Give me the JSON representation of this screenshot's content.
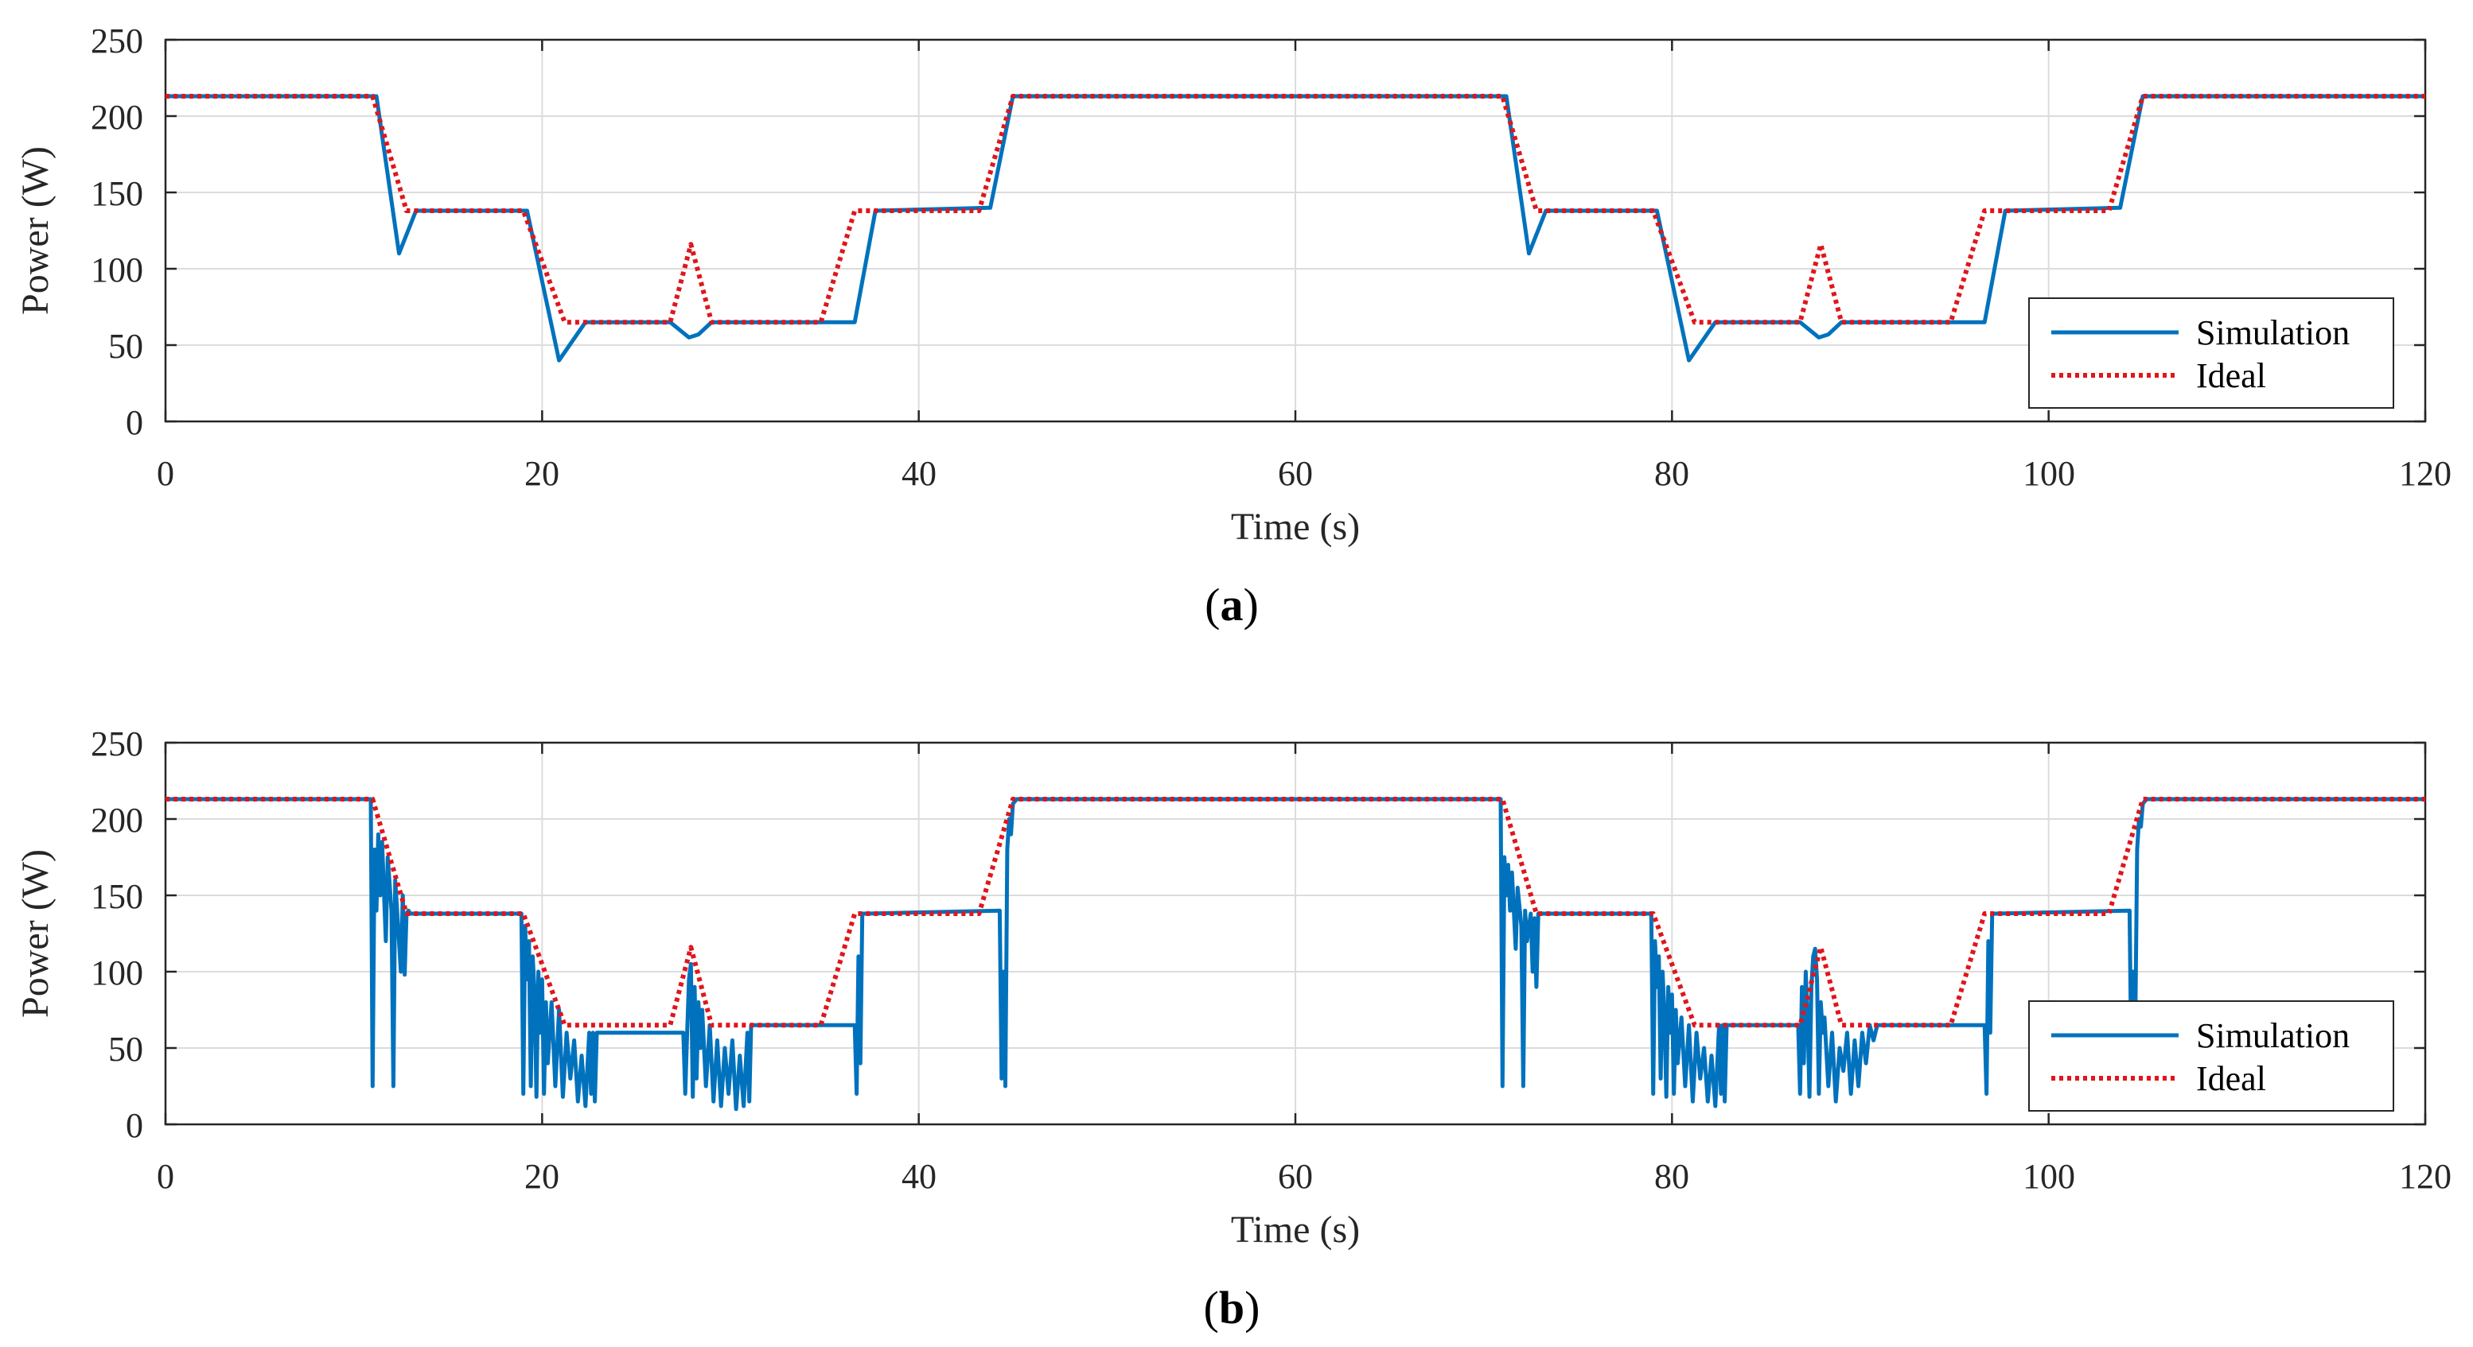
{
  "colors": {
    "simulation": "#0072BD",
    "ideal": "#E0161B",
    "grid": "#DCDCDC",
    "axis": "#262626"
  },
  "chart_data": [
    {
      "panel": "a",
      "type": "line",
      "panel_label": {
        "open": "(",
        "letter": "a",
        "close": ")"
      },
      "xlabel": "Time (s)",
      "ylabel": "Power (W)",
      "xlim": [
        0,
        120
      ],
      "ylim": [
        0,
        250
      ],
      "xticks": [
        0,
        20,
        40,
        60,
        80,
        100,
        120
      ],
      "yticks": [
        0,
        50,
        100,
        150,
        200,
        250
      ],
      "grid": true,
      "legend": {
        "position": "bottom-right",
        "entries": [
          "Simulation",
          "Ideal"
        ]
      },
      "series": [
        {
          "name": "Simulation",
          "style": "solid",
          "x": [
            0,
            11.2,
            12.4,
            13.3,
            19.2,
            20.9,
            22.3,
            26.8,
            27.8,
            28.3,
            29.0,
            36.6,
            37.7,
            43.8,
            45.0,
            71.2,
            72.4,
            73.3,
            79.2,
            80.9,
            82.3,
            86.8,
            87.8,
            88.3,
            89.0,
            96.6,
            97.7,
            103.8,
            105.0,
            120
          ],
          "y": [
            213,
            213,
            110,
            138,
            138,
            40,
            65,
            65,
            55,
            57,
            65,
            65,
            138,
            140,
            213,
            213,
            110,
            138,
            138,
            40,
            65,
            65,
            55,
            57,
            65,
            65,
            138,
            140,
            213,
            213
          ]
        },
        {
          "name": "Ideal",
          "style": "dotted",
          "x": [
            0,
            11.0,
            12.8,
            19.0,
            21.2,
            26.8,
            27.9,
            29.0,
            34.8,
            36.6,
            43.2,
            45.0,
            71.0,
            72.8,
            79.0,
            81.2,
            86.8,
            87.9,
            89.0,
            94.8,
            96.6,
            103.2,
            105.0,
            120
          ],
          "y": [
            213,
            213,
            138,
            138,
            65,
            65,
            116,
            65,
            65,
            138,
            138,
            213,
            213,
            138,
            138,
            65,
            65,
            116,
            65,
            65,
            138,
            138,
            213,
            213
          ]
        }
      ]
    },
    {
      "panel": "b",
      "type": "line",
      "panel_label": {
        "open": "(",
        "letter": "b",
        "close": ")"
      },
      "xlabel": "Time (s)",
      "ylabel": "Power (W)",
      "xlim": [
        0,
        120
      ],
      "ylim": [
        0,
        250
      ],
      "xticks": [
        0,
        20,
        40,
        60,
        80,
        100,
        120
      ],
      "yticks": [
        0,
        50,
        100,
        150,
        200,
        250
      ],
      "grid": true,
      "legend": {
        "position": "bottom-right",
        "entries": [
          "Simulation",
          "Ideal"
        ]
      },
      "series": [
        {
          "name": "Simulation",
          "style": "solid",
          "x": [
            0,
            10.9,
            11.0,
            11.1,
            11.2,
            11.3,
            11.4,
            11.5,
            11.7,
            11.8,
            12.0,
            12.1,
            12.2,
            12.3,
            12.5,
            12.6,
            12.7,
            12.8,
            12.9,
            13.0,
            18.9,
            19.0,
            19.1,
            19.2,
            19.3,
            19.4,
            19.5,
            19.6,
            19.7,
            19.8,
            19.9,
            20.0,
            20.1,
            20.2,
            20.3,
            20.5,
            20.7,
            20.9,
            21.1,
            21.3,
            21.5,
            21.7,
            21.9,
            22.1,
            22.3,
            22.5,
            22.6,
            22.7,
            22.8,
            22.9,
            23.0,
            23.2,
            27.5,
            27.6,
            27.7,
            27.8,
            27.9,
            28.0,
            28.1,
            28.2,
            28.3,
            28.4,
            28.5,
            28.7,
            28.9,
            29.1,
            29.3,
            29.5,
            29.7,
            29.9,
            30.1,
            30.3,
            30.5,
            30.7,
            30.9,
            31.0,
            31.1,
            31.2,
            36.6,
            36.7,
            36.8,
            36.9,
            37.0,
            37.2,
            44.3,
            44.4,
            44.5,
            44.6,
            44.7,
            44.8,
            44.9,
            45.0,
            45.2,
            45.4,
            70.9,
            71.0,
            71.1,
            71.2,
            71.3,
            71.4,
            71.5,
            71.7,
            71.8,
            72.0,
            72.1,
            72.2,
            72.3,
            72.5,
            72.6,
            72.7,
            72.8,
            72.9,
            73.0,
            78.9,
            79.0,
            79.1,
            79.2,
            79.3,
            79.4,
            79.5,
            79.6,
            79.7,
            79.8,
            79.9,
            80.0,
            80.1,
            80.2,
            80.3,
            80.5,
            80.7,
            80.9,
            81.1,
            81.3,
            81.5,
            81.7,
            81.9,
            82.1,
            82.3,
            82.5,
            82.6,
            82.7,
            82.8,
            82.9,
            83.0,
            83.2,
            86.7,
            86.8,
            86.9,
            87.0,
            87.1,
            87.2,
            87.3,
            87.4,
            87.5,
            87.6,
            87.7,
            87.8,
            87.9,
            88.0,
            88.1,
            88.3,
            88.5,
            88.7,
            88.9,
            89.1,
            89.3,
            89.5,
            89.7,
            89.9,
            90.1,
            90.3,
            90.5,
            90.7,
            90.9,
            91.0,
            91.2,
            96.6,
            96.7,
            96.8,
            96.9,
            97.0,
            97.2,
            104.3,
            104.4,
            104.5,
            104.6,
            104.7,
            104.8,
            104.9,
            105.0,
            105.2,
            105.4,
            120
          ],
          "y": [
            213,
            213,
            25,
            180,
            140,
            190,
            150,
            185,
            120,
            175,
            140,
            25,
            160,
            140,
            100,
            150,
            98,
            138,
            140,
            138,
            138,
            20,
            130,
            95,
            120,
            25,
            110,
            85,
            18,
            100,
            60,
            95,
            20,
            80,
            40,
            80,
            25,
            75,
            18,
            60,
            30,
            55,
            15,
            45,
            12,
            60,
            20,
            60,
            15,
            60,
            60,
            60,
            60,
            20,
            60,
            95,
            105,
            18,
            90,
            30,
            80,
            50,
            75,
            25,
            65,
            15,
            55,
            12,
            50,
            20,
            55,
            10,
            45,
            12,
            60,
            15,
            65,
            65,
            65,
            20,
            110,
            40,
            138,
            138,
            140,
            30,
            100,
            25,
            180,
            200,
            190,
            210,
            213,
            213,
            213,
            25,
            175,
            150,
            170,
            140,
            165,
            115,
            155,
            130,
            25,
            140,
            120,
            138,
            100,
            135,
            90,
            138,
            138,
            138,
            20,
            120,
            90,
            110,
            30,
            100,
            70,
            18,
            90,
            60,
            85,
            20,
            75,
            40,
            70,
            25,
            65,
            15,
            60,
            30,
            50,
            15,
            45,
            12,
            65,
            20,
            65,
            15,
            65,
            65,
            65,
            65,
            20,
            90,
            40,
            100,
            70,
            18,
            90,
            110,
            115,
            95,
            20,
            80,
            60,
            70,
            25,
            60,
            15,
            50,
            35,
            60,
            20,
            55,
            25,
            60,
            40,
            65,
            55,
            65,
            65,
            65,
            65,
            20,
            120,
            60,
            138,
            138,
            140,
            30,
            100,
            60,
            180,
            200,
            195,
            210,
            213,
            213,
            213
          ]
        },
        {
          "name": "Ideal",
          "style": "dotted",
          "x": [
            0,
            11.0,
            12.8,
            19.0,
            21.2,
            26.8,
            27.9,
            29.0,
            34.8,
            36.6,
            43.2,
            45.0,
            71.0,
            72.8,
            79.0,
            81.2,
            86.8,
            87.9,
            89.0,
            94.8,
            96.6,
            103.2,
            105.0,
            120
          ],
          "y": [
            213,
            213,
            138,
            138,
            65,
            65,
            116,
            65,
            65,
            138,
            138,
            213,
            213,
            138,
            138,
            65,
            65,
            116,
            65,
            65,
            138,
            138,
            213,
            213
          ]
        }
      ]
    }
  ]
}
